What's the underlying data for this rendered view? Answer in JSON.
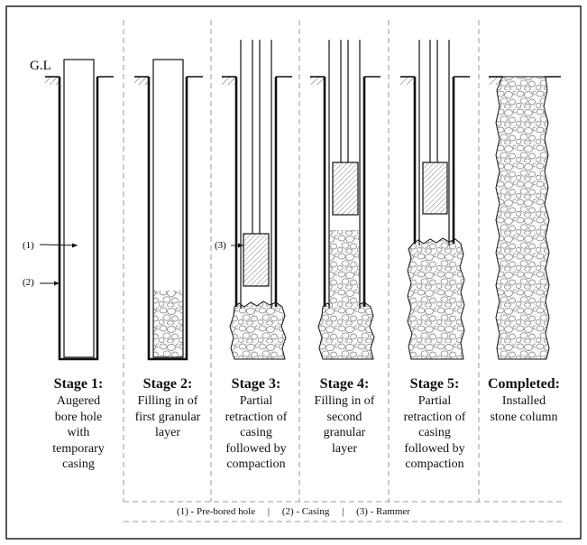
{
  "ground_label": "G.L",
  "callouts": {
    "bore": "(1)",
    "casing": "(2)",
    "rammer": "(3)"
  },
  "stages": [
    {
      "title": "Stage 1:",
      "description": "Augered\nbore hole\nwith\ntemporary\ncasing"
    },
    {
      "title": "Stage 2:",
      "description": "Filling in of\nfirst granular\nlayer"
    },
    {
      "title": "Stage 3:",
      "description": "Partial\nretraction of\ncasing\nfollowed by\ncompaction"
    },
    {
      "title": "Stage 4:",
      "description": "Filling in of\nsecond\ngranular\nlayer"
    },
    {
      "title": "Stage 5:",
      "description": "Partial\nretraction of\ncasing\nfollowed by\ncompaction"
    },
    {
      "title": "Completed:",
      "description": "Installed\nstone column"
    }
  ],
  "legend": {
    "item1": "(1) - Pre-bored hole",
    "sep1": "|",
    "item2": "(2) - Casing",
    "sep2": "|",
    "item3": "(3) - Rammer"
  }
}
